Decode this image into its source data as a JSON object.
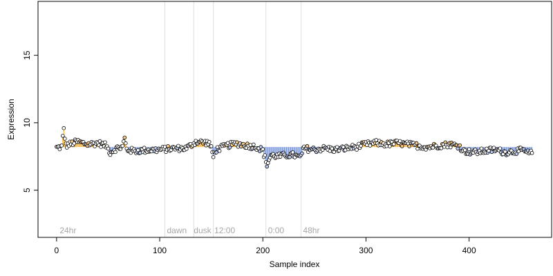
{
  "chart_data": {
    "type": "scatter",
    "xlabel": "Sample index",
    "ylabel": "Expression",
    "xlim": [
      -18,
      480
    ],
    "ylim": [
      1.5,
      19
    ],
    "x_ticks": [
      0,
      100,
      200,
      300,
      400
    ],
    "y_ticks": [
      5,
      10,
      15
    ],
    "baseline": 8.2,
    "n_points": 462,
    "vertical_markers": [
      105,
      133,
      152,
      203,
      237
    ],
    "annotations": [
      {
        "x": 3,
        "label": "24hr"
      },
      {
        "x": 107,
        "label": "dawn"
      },
      {
        "x": 133,
        "label": "dusk"
      },
      {
        "x": 153,
        "label": "12:00"
      },
      {
        "x": 205,
        "label": "0:00"
      },
      {
        "x": 239,
        "label": "48hr"
      }
    ],
    "colors": {
      "above": "#f5a623",
      "below": "#6f8fd8",
      "point_fill": "#ffffff",
      "point_stroke": "#000000",
      "marker": "#dedede",
      "annotation": "#a6a6a6"
    },
    "profile": [
      {
        "x": 0,
        "y": 8.15
      },
      {
        "x": 5,
        "y": 8.2
      },
      {
        "x": 7,
        "y": 9.6
      },
      {
        "x": 9,
        "y": 8.3
      },
      {
        "x": 20,
        "y": 8.6
      },
      {
        "x": 30,
        "y": 8.4
      },
      {
        "x": 40,
        "y": 8.5
      },
      {
        "x": 48,
        "y": 8.3
      },
      {
        "x": 52,
        "y": 7.8
      },
      {
        "x": 58,
        "y": 8.1
      },
      {
        "x": 64,
        "y": 8.2
      },
      {
        "x": 66,
        "y": 8.9
      },
      {
        "x": 68,
        "y": 8.0
      },
      {
        "x": 75,
        "y": 7.9
      },
      {
        "x": 85,
        "y": 7.95
      },
      {
        "x": 100,
        "y": 8.0
      },
      {
        "x": 115,
        "y": 8.1
      },
      {
        "x": 125,
        "y": 8.1
      },
      {
        "x": 130,
        "y": 8.3
      },
      {
        "x": 135,
        "y": 8.6
      },
      {
        "x": 148,
        "y": 8.5
      },
      {
        "x": 152,
        "y": 7.6
      },
      {
        "x": 155,
        "y": 8.0
      },
      {
        "x": 165,
        "y": 8.3
      },
      {
        "x": 175,
        "y": 8.45
      },
      {
        "x": 185,
        "y": 8.3
      },
      {
        "x": 195,
        "y": 8.2
      },
      {
        "x": 200,
        "y": 7.9
      },
      {
        "x": 204,
        "y": 6.9
      },
      {
        "x": 208,
        "y": 7.6
      },
      {
        "x": 215,
        "y": 7.5
      },
      {
        "x": 222,
        "y": 7.6
      },
      {
        "x": 230,
        "y": 7.6
      },
      {
        "x": 236,
        "y": 7.4
      },
      {
        "x": 240,
        "y": 8.1
      },
      {
        "x": 250,
        "y": 8.0
      },
      {
        "x": 260,
        "y": 8.1
      },
      {
        "x": 270,
        "y": 8.0
      },
      {
        "x": 280,
        "y": 8.1
      },
      {
        "x": 290,
        "y": 8.2
      },
      {
        "x": 300,
        "y": 8.4
      },
      {
        "x": 310,
        "y": 8.5
      },
      {
        "x": 320,
        "y": 8.4
      },
      {
        "x": 330,
        "y": 8.5
      },
      {
        "x": 340,
        "y": 8.4
      },
      {
        "x": 350,
        "y": 8.3
      },
      {
        "x": 360,
        "y": 8.2
      },
      {
        "x": 370,
        "y": 8.3
      },
      {
        "x": 380,
        "y": 8.4
      },
      {
        "x": 390,
        "y": 8.3
      },
      {
        "x": 395,
        "y": 7.9
      },
      {
        "x": 405,
        "y": 7.8
      },
      {
        "x": 415,
        "y": 7.9
      },
      {
        "x": 425,
        "y": 8.0
      },
      {
        "x": 435,
        "y": 7.8
      },
      {
        "x": 445,
        "y": 7.9
      },
      {
        "x": 452,
        "y": 7.95
      },
      {
        "x": 458,
        "y": 7.7
      },
      {
        "x": 462,
        "y": 7.8
      }
    ]
  }
}
